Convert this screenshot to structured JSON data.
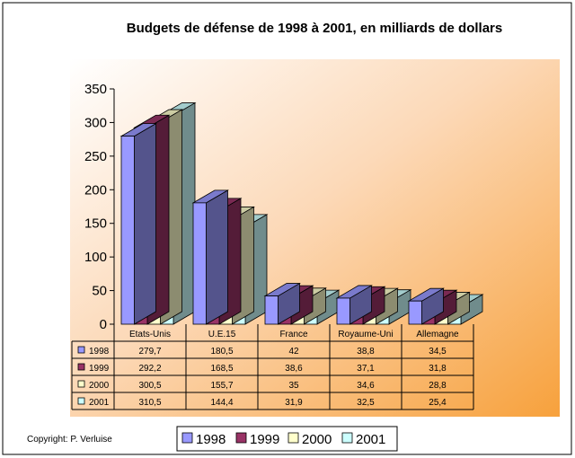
{
  "chart_data": {
    "type": "bar",
    "title": "Budgets de défense de 1998 à 2001, en milliards de dollars",
    "categories": [
      "Etats-Unis",
      "U.E.15",
      "France",
      "Royaume-Uni",
      "Allemagne"
    ],
    "series": [
      {
        "name": "1998",
        "color": "#9999ff",
        "values": [
          279.7,
          180.5,
          42,
          38.8,
          34.5
        ],
        "labels": [
          "279,7",
          "180,5",
          "42",
          "38,8",
          "34,5"
        ]
      },
      {
        "name": "1999",
        "color": "#993366",
        "values": [
          292.2,
          168.5,
          38.6,
          37.1,
          31.8
        ],
        "labels": [
          "292,2",
          "168,5",
          "38,6",
          "37,1",
          "31,8"
        ]
      },
      {
        "name": "2000",
        "color": "#ffffcc",
        "values": [
          300.5,
          155.7,
          35,
          34.6,
          28.8
        ],
        "labels": [
          "300,5",
          "155,7",
          "35",
          "34,6",
          "28,8"
        ]
      },
      {
        "name": "2001",
        "color": "#ccffff",
        "values": [
          310.5,
          144.4,
          31.9,
          32.5,
          25.4
        ],
        "labels": [
          "310,5",
          "144,4",
          "31,9",
          "32,5",
          "25,4"
        ]
      }
    ],
    "yticks": [
      "0",
      "50",
      "100",
      "150",
      "200",
      "250",
      "300",
      "350"
    ],
    "ylim": [
      0,
      350
    ],
    "legend_position": "bottom",
    "grid": false,
    "data_table": true
  },
  "footer": {
    "copyright": "Copyright: P. Verluise"
  }
}
